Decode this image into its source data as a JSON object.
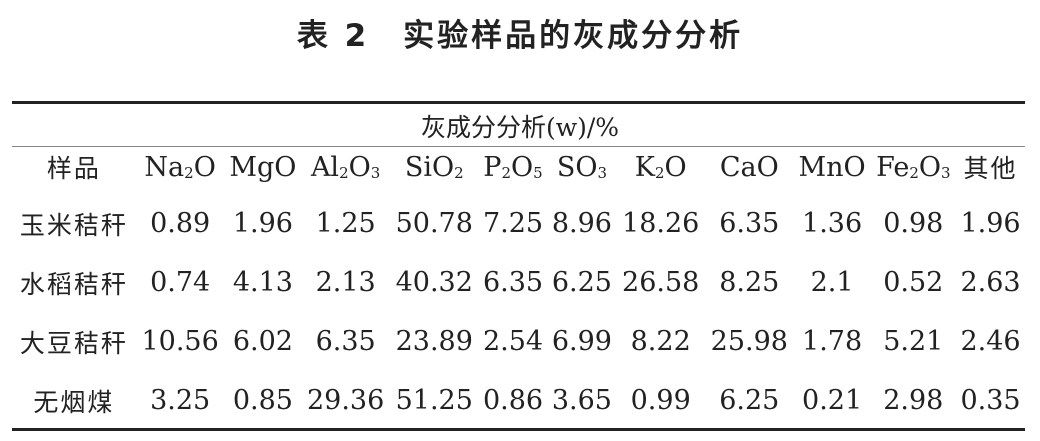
{
  "title": "表 2　实验样品的灰成分分析",
  "subheader": "灰成分分析(w)/%",
  "columns": [
    {
      "base": "样品",
      "sub": "",
      "tail": ""
    },
    {
      "base": "Na",
      "sub": "2",
      "tail": "O"
    },
    {
      "base": "MgO",
      "sub": "",
      "tail": ""
    },
    {
      "base": "Al",
      "sub": "2",
      "tail": "O",
      "sub2": "3"
    },
    {
      "base": "SiO",
      "sub": "2",
      "tail": ""
    },
    {
      "base": "P",
      "sub": "2",
      "tail": "O",
      "sub2": "5"
    },
    {
      "base": "SO",
      "sub": "3",
      "tail": ""
    },
    {
      "base": "K",
      "sub": "2",
      "tail": "O"
    },
    {
      "base": "CaO",
      "sub": "",
      "tail": ""
    },
    {
      "base": "MnO",
      "sub": "",
      "tail": ""
    },
    {
      "base": "Fe",
      "sub": "2",
      "tail": "O",
      "sub2": "3"
    },
    {
      "base": "其他",
      "sub": "",
      "tail": ""
    }
  ],
  "rows": [
    [
      "玉米秸秆",
      "0.89",
      "1.96",
      "1.25",
      "50.78",
      "7.25",
      "8.96",
      "18.26",
      "6.35",
      "1.36",
      "0.98",
      "1.96"
    ],
    [
      "水稻秸秆",
      "0.74",
      "4.13",
      "2.13",
      "40.32",
      "6.35",
      "6.25",
      "26.58",
      "8.25",
      "2.1",
      "0.52",
      "2.63"
    ],
    [
      "大豆秸秆",
      "10.56",
      "6.02",
      "6.35",
      "23.89",
      "2.54",
      "6.99",
      "8.22",
      "25.98",
      "1.78",
      "5.21",
      "2.46"
    ],
    [
      "无烟煤",
      "3.25",
      "0.85",
      "29.36",
      "51.25",
      "0.86",
      "3.65",
      "0.99",
      "6.25",
      "0.21",
      "2.98",
      "0.35"
    ]
  ]
}
